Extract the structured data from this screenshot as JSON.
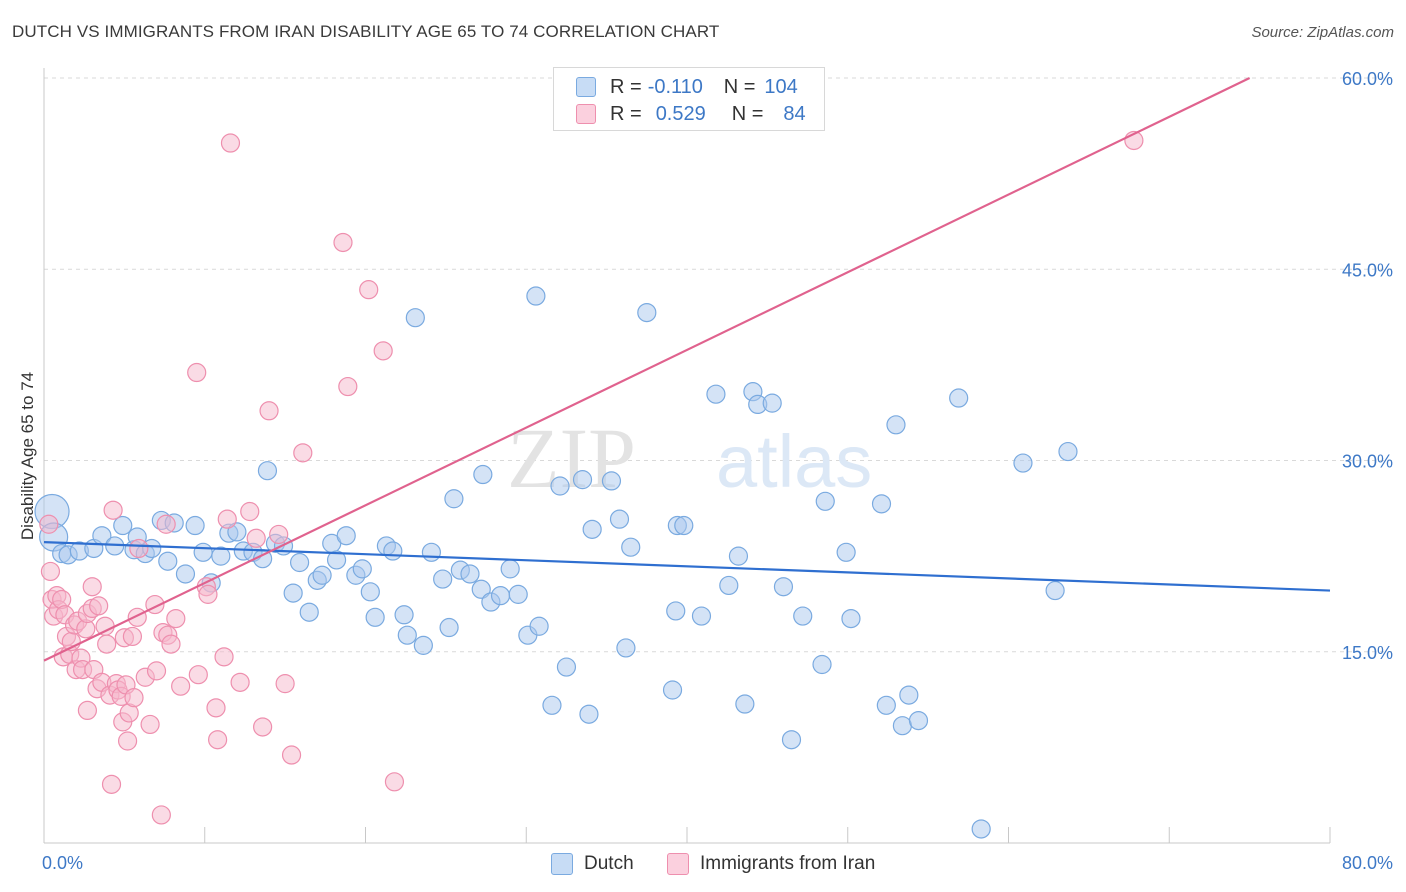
{
  "header": {
    "title": "DUTCH VS IMMIGRANTS FROM IRAN DISABILITY AGE 65 TO 74 CORRELATION CHART",
    "source": "Source: ZipAtlas.com"
  },
  "legend": {
    "r_label": "R =",
    "n_label": "N =",
    "rows": [
      {
        "r": "-0.110",
        "n": "104"
      },
      {
        "r": "0.529",
        "n": "84"
      }
    ]
  },
  "bottom_legend": [
    "Dutch",
    "Immigrants from Iran"
  ],
  "watermark": {
    "zip": "ZIP",
    "atlas": "atlas"
  },
  "colors": {
    "dutch_fill": "#a9c8ee",
    "dutch_stroke": "#7aaae0",
    "dutch_line": "#2f6fd0",
    "iran_fill": "#f6b8cb",
    "iran_stroke": "#ee8fae",
    "iran_line": "#e0628e",
    "tick_text": "#3d78c6",
    "grid": "#d9d9d9"
  },
  "chart_data": {
    "type": "scatter",
    "title": "DUTCH VS IMMIGRANTS FROM IRAN DISABILITY AGE 65 TO 74 CORRELATION CHART",
    "xlabel": "",
    "ylabel": "Disability Age 65 to 74",
    "xlim": [
      0,
      80
    ],
    "ylim": [
      0,
      60
    ],
    "x_tick_labels": [
      "0.0%",
      "80.0%"
    ],
    "y_ticks": [
      15,
      30,
      45,
      60
    ],
    "y_tick_labels": [
      "15.0%",
      "30.0%",
      "45.0%",
      "60.0%"
    ],
    "grid": true,
    "series": [
      {
        "name": "Dutch",
        "r": -0.11,
        "n": 104,
        "trend": [
          [
            0,
            23.6
          ],
          [
            80,
            19.8
          ]
        ],
        "points": [
          [
            0.5,
            26.0
          ],
          [
            0.6,
            24.0
          ],
          [
            1.1,
            22.7
          ],
          [
            1.5,
            22.6
          ],
          [
            2.2,
            22.9
          ],
          [
            3.1,
            23.1
          ],
          [
            3.6,
            24.1
          ],
          [
            4.4,
            23.3
          ],
          [
            4.9,
            24.9
          ],
          [
            5.6,
            23.0
          ],
          [
            5.8,
            24.0
          ],
          [
            6.3,
            22.7
          ],
          [
            6.7,
            23.1
          ],
          [
            7.3,
            25.3
          ],
          [
            7.7,
            22.1
          ],
          [
            8.1,
            25.1
          ],
          [
            8.8,
            21.1
          ],
          [
            9.4,
            24.9
          ],
          [
            9.9,
            22.8
          ],
          [
            10.4,
            20.4
          ],
          [
            11.0,
            22.5
          ],
          [
            11.5,
            24.3
          ],
          [
            12.0,
            24.4
          ],
          [
            12.4,
            22.9
          ],
          [
            13.0,
            22.8
          ],
          [
            13.6,
            22.3
          ],
          [
            13.9,
            29.2
          ],
          [
            14.4,
            23.5
          ],
          [
            14.9,
            23.3
          ],
          [
            15.5,
            19.6
          ],
          [
            15.9,
            22.0
          ],
          [
            16.5,
            18.1
          ],
          [
            17.0,
            20.6
          ],
          [
            17.3,
            21.0
          ],
          [
            17.9,
            23.5
          ],
          [
            18.2,
            22.2
          ],
          [
            18.8,
            24.1
          ],
          [
            19.4,
            21.0
          ],
          [
            19.8,
            21.5
          ],
          [
            20.3,
            19.7
          ],
          [
            20.6,
            17.7
          ],
          [
            21.3,
            23.3
          ],
          [
            21.7,
            22.9
          ],
          [
            22.4,
            17.9
          ],
          [
            22.6,
            16.3
          ],
          [
            23.1,
            41.2
          ],
          [
            23.6,
            15.5
          ],
          [
            24.1,
            22.8
          ],
          [
            24.8,
            20.7
          ],
          [
            25.2,
            16.9
          ],
          [
            25.5,
            27.0
          ],
          [
            25.9,
            21.4
          ],
          [
            26.5,
            21.1
          ],
          [
            27.2,
            19.9
          ],
          [
            27.3,
            28.9
          ],
          [
            27.8,
            18.9
          ],
          [
            28.4,
            19.4
          ],
          [
            29.0,
            21.5
          ],
          [
            29.5,
            19.5
          ],
          [
            30.1,
            16.3
          ],
          [
            30.6,
            42.9
          ],
          [
            30.8,
            17.0
          ],
          [
            31.6,
            10.8
          ],
          [
            32.1,
            28.0
          ],
          [
            32.5,
            13.8
          ],
          [
            33.5,
            28.5
          ],
          [
            33.9,
            10.1
          ],
          [
            34.1,
            24.6
          ],
          [
            35.3,
            28.4
          ],
          [
            35.8,
            25.4
          ],
          [
            36.2,
            15.3
          ],
          [
            36.5,
            23.2
          ],
          [
            37.5,
            41.6
          ],
          [
            39.1,
            12.0
          ],
          [
            39.3,
            18.2
          ],
          [
            39.4,
            24.9
          ],
          [
            39.8,
            24.9
          ],
          [
            40.9,
            17.8
          ],
          [
            41.8,
            35.2
          ],
          [
            42.6,
            20.2
          ],
          [
            43.2,
            22.5
          ],
          [
            43.6,
            10.9
          ],
          [
            44.1,
            35.4
          ],
          [
            44.4,
            34.4
          ],
          [
            45.3,
            34.5
          ],
          [
            46.0,
            20.1
          ],
          [
            46.5,
            8.1
          ],
          [
            47.2,
            17.8
          ],
          [
            48.4,
            14.0
          ],
          [
            48.6,
            26.8
          ],
          [
            49.9,
            22.8
          ],
          [
            50.2,
            17.6
          ],
          [
            52.1,
            26.6
          ],
          [
            52.4,
            10.8
          ],
          [
            53.0,
            32.8
          ],
          [
            53.4,
            9.2
          ],
          [
            53.8,
            11.6
          ],
          [
            54.4,
            9.6
          ],
          [
            56.9,
            34.9
          ],
          [
            58.3,
            1.1
          ],
          [
            60.9,
            29.8
          ],
          [
            62.9,
            19.8
          ],
          [
            63.7,
            30.7
          ]
        ]
      },
      {
        "name": "Immigrants from Iran",
        "r": 0.529,
        "n": 84,
        "trend": [
          [
            0,
            14.3
          ],
          [
            75,
            60.0
          ]
        ],
        "points": [
          [
            0.3,
            25.0
          ],
          [
            0.4,
            21.3
          ],
          [
            0.5,
            19.1
          ],
          [
            0.6,
            17.8
          ],
          [
            0.8,
            19.4
          ],
          [
            0.9,
            18.3
          ],
          [
            1.1,
            19.1
          ],
          [
            1.2,
            14.6
          ],
          [
            1.3,
            17.9
          ],
          [
            1.4,
            16.2
          ],
          [
            1.6,
            14.8
          ],
          [
            1.7,
            15.8
          ],
          [
            1.9,
            17.1
          ],
          [
            2.0,
            13.6
          ],
          [
            2.1,
            17.4
          ],
          [
            2.3,
            14.5
          ],
          [
            2.4,
            13.6
          ],
          [
            2.6,
            16.8
          ],
          [
            2.7,
            18.0
          ],
          [
            2.7,
            10.4
          ],
          [
            3.0,
            18.4
          ],
          [
            3.0,
            20.1
          ],
          [
            3.1,
            13.6
          ],
          [
            3.3,
            12.1
          ],
          [
            3.4,
            18.6
          ],
          [
            3.6,
            12.6
          ],
          [
            3.8,
            17.0
          ],
          [
            3.9,
            15.6
          ],
          [
            4.1,
            11.6
          ],
          [
            4.2,
            4.6
          ],
          [
            4.3,
            26.1
          ],
          [
            4.5,
            12.5
          ],
          [
            4.6,
            12.0
          ],
          [
            4.8,
            11.5
          ],
          [
            4.9,
            9.5
          ],
          [
            5.0,
            16.1
          ],
          [
            5.1,
            12.4
          ],
          [
            5.2,
            8.0
          ],
          [
            5.3,
            10.2
          ],
          [
            5.5,
            16.2
          ],
          [
            5.6,
            11.4
          ],
          [
            5.8,
            17.7
          ],
          [
            5.9,
            23.1
          ],
          [
            6.3,
            13.0
          ],
          [
            6.6,
            9.3
          ],
          [
            6.9,
            18.7
          ],
          [
            7.0,
            13.5
          ],
          [
            7.3,
            2.2
          ],
          [
            7.4,
            16.5
          ],
          [
            7.6,
            25.0
          ],
          [
            7.7,
            16.3
          ],
          [
            7.9,
            15.6
          ],
          [
            8.2,
            17.6
          ],
          [
            8.5,
            12.3
          ],
          [
            9.5,
            36.9
          ],
          [
            9.6,
            13.2
          ],
          [
            10.1,
            20.1
          ],
          [
            10.2,
            19.5
          ],
          [
            10.7,
            10.6
          ],
          [
            10.8,
            8.1
          ],
          [
            11.2,
            14.6
          ],
          [
            11.4,
            25.4
          ],
          [
            11.6,
            54.9
          ],
          [
            12.2,
            12.6
          ],
          [
            12.8,
            26.0
          ],
          [
            13.2,
            23.9
          ],
          [
            13.6,
            9.1
          ],
          [
            14.0,
            33.9
          ],
          [
            14.6,
            24.2
          ],
          [
            15.0,
            12.5
          ],
          [
            15.4,
            6.9
          ],
          [
            16.1,
            30.6
          ],
          [
            18.6,
            47.1
          ],
          [
            18.9,
            35.8
          ],
          [
            20.2,
            43.4
          ],
          [
            21.1,
            38.6
          ],
          [
            21.8,
            4.8
          ],
          [
            67.8,
            55.1
          ]
        ]
      }
    ]
  }
}
